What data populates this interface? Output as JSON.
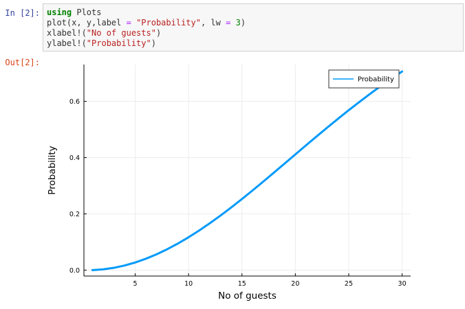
{
  "cell_in": {
    "prompt": "In [2]:",
    "lines": [
      [
        {
          "t": "using",
          "c": "kw"
        },
        {
          "t": " Plots",
          "c": ""
        }
      ],
      [
        {
          "t": "plot(x, y,label ",
          "c": ""
        },
        {
          "t": "=",
          "c": "op"
        },
        {
          "t": " ",
          "c": ""
        },
        {
          "t": "\"Probability\"",
          "c": "str"
        },
        {
          "t": ", lw ",
          "c": ""
        },
        {
          "t": "=",
          "c": "op"
        },
        {
          "t": " ",
          "c": ""
        },
        {
          "t": "3",
          "c": "num"
        },
        {
          "t": ")",
          "c": ""
        }
      ],
      [
        {
          "t": "xlabel!(",
          "c": ""
        },
        {
          "t": "\"No of guests\"",
          "c": "str"
        },
        {
          "t": ")",
          "c": ""
        }
      ],
      [
        {
          "t": "ylabel!(",
          "c": ""
        },
        {
          "t": "\"Probability\"",
          "c": "str"
        },
        {
          "t": ")",
          "c": ""
        }
      ]
    ]
  },
  "cell_out": {
    "prompt": "Out[2]:"
  },
  "chart_data": {
    "type": "line",
    "xlabel": "No of guests",
    "ylabel": "Probability",
    "xlim": [
      0.2,
      30.8
    ],
    "ylim": [
      -0.021,
      0.731
    ],
    "xticks": [
      5,
      10,
      15,
      20,
      25,
      30
    ],
    "yticks": [
      0.0,
      0.2,
      0.4,
      0.6
    ],
    "ytick_labels": [
      "0.0",
      "0.2",
      "0.4",
      "0.6"
    ],
    "grid": true,
    "legend_position": "top-right",
    "series": [
      {
        "name": "Probability",
        "color": "#009af9",
        "x": [
          1,
          2,
          3,
          4,
          5,
          6,
          7,
          8,
          9,
          10,
          11,
          12,
          13,
          14,
          15,
          16,
          17,
          18,
          19,
          20,
          21,
          22,
          23,
          24,
          25,
          26,
          27,
          28,
          29,
          30
        ],
        "y": [
          0.0,
          0.0027,
          0.0082,
          0.0164,
          0.0271,
          0.0405,
          0.0562,
          0.0743,
          0.0946,
          0.1169,
          0.1411,
          0.167,
          0.1944,
          0.2231,
          0.2529,
          0.2836,
          0.315,
          0.3469,
          0.3791,
          0.4114,
          0.4437,
          0.4757,
          0.5073,
          0.5383,
          0.5687,
          0.5982,
          0.6269,
          0.6545,
          0.681,
          0.7063
        ]
      }
    ]
  }
}
